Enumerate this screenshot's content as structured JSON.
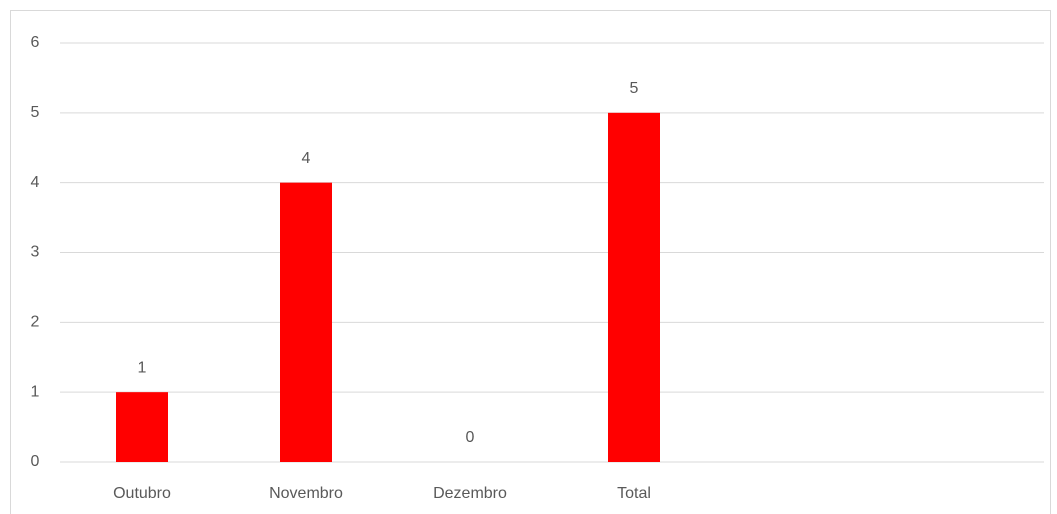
{
  "chart_data": {
    "type": "bar",
    "categories": [
      "Outubro",
      "Novembro",
      "Dezembro",
      "Total",
      null,
      null
    ],
    "values": [
      1,
      4,
      0,
      5,
      null,
      null
    ],
    "color": "#ff0000",
    "ylim": [
      0,
      6
    ],
    "yticks": [
      0,
      1,
      2,
      3,
      4,
      5,
      6
    ],
    "grid": true
  }
}
